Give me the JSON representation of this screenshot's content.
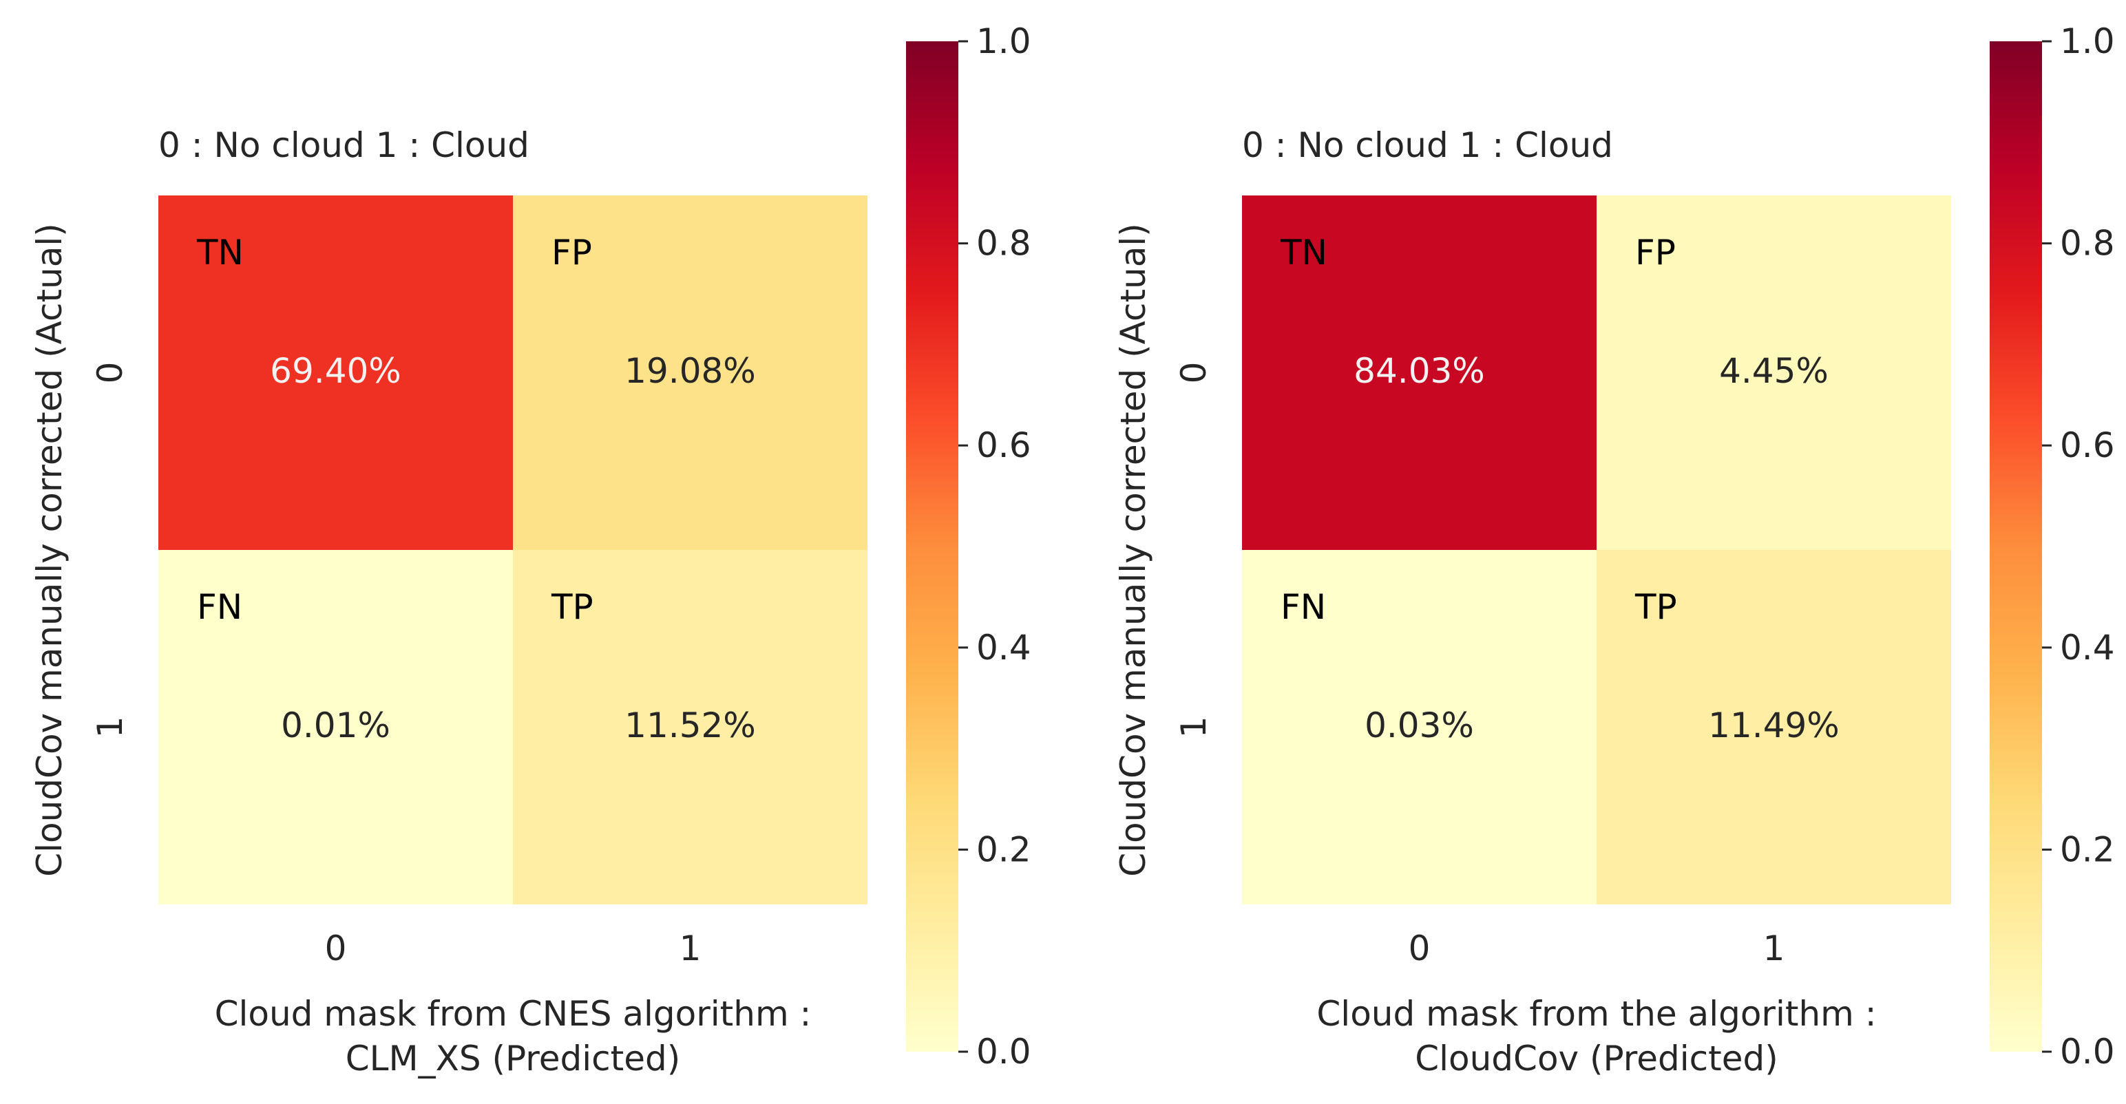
{
  "chart_data": [
    {
      "type": "heatmap",
      "subtitle": "0 : No cloud    1 : Cloud",
      "xlabel_line1": "Cloud mask from CNES algorithm :",
      "xlabel_line2": "CLM_XS (Predicted)",
      "ylabel": "CloudCov manually corrected (Actual)",
      "x_ticks": [
        "0",
        "1"
      ],
      "y_ticks": [
        "0",
        "1"
      ],
      "cells": [
        [
          {
            "label": "TN",
            "value": 0.694,
            "text": "69.40%"
          },
          {
            "label": "FP",
            "value": 0.1908,
            "text": "19.08%"
          }
        ],
        [
          {
            "label": "FN",
            "value": 0.0001,
            "text": "0.01%"
          },
          {
            "label": "TP",
            "value": 0.1152,
            "text": "11.52%"
          }
        ]
      ],
      "colorbar": {
        "min": 0.0,
        "max": 1.0,
        "ticks": [
          "0.0",
          "0.2",
          "0.4",
          "0.6",
          "0.8",
          "1.0"
        ],
        "colormap": "YlOrRd"
      }
    },
    {
      "type": "heatmap",
      "subtitle": "0 : No cloud    1 : Cloud",
      "xlabel_line1": "Cloud mask from the algorithm :",
      "xlabel_line2": "CloudCov (Predicted)",
      "ylabel": "CloudCov manually corrected (Actual)",
      "x_ticks": [
        "0",
        "1"
      ],
      "y_ticks": [
        "0",
        "1"
      ],
      "cells": [
        [
          {
            "label": "TN",
            "value": 0.8403,
            "text": "84.03%"
          },
          {
            "label": "FP",
            "value": 0.0445,
            "text": "4.45%"
          }
        ],
        [
          {
            "label": "FN",
            "value": 0.0003,
            "text": "0.03%"
          },
          {
            "label": "TP",
            "value": 0.1149,
            "text": "11.49%"
          }
        ]
      ],
      "colorbar": {
        "min": 0.0,
        "max": 1.0,
        "ticks": [
          "0.0",
          "0.2",
          "0.4",
          "0.6",
          "0.8",
          "1.0"
        ],
        "colormap": "YlOrRd"
      }
    }
  ]
}
